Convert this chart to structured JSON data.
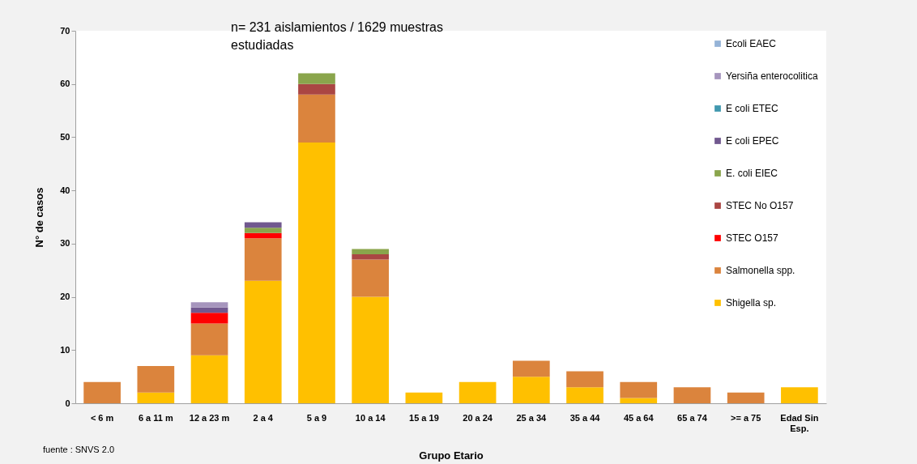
{
  "chart_data": {
    "type": "bar",
    "stacked": true,
    "xlabel": "Grupo Etario",
    "ylabel": "N° de casos",
    "categories": [
      "< 6 m",
      "6 a 11 m",
      "12 a 23 m",
      "2 a 4",
      "5 a 9",
      "10 a 14",
      "15 a 19",
      "20 a 24",
      "25 a 34",
      "35 a 44",
      "45 a 64",
      "65 a 74",
      ">= a 75",
      "Edad Sin Esp."
    ],
    "series": [
      {
        "name": "Shigella sp.",
        "color": "#ffc000",
        "values": [
          0,
          2,
          9,
          23,
          49,
          20,
          2,
          4,
          5,
          3,
          1,
          0,
          0,
          3
        ]
      },
      {
        "name": "Salmonella spp.",
        "color": "#db843d",
        "values": [
          4,
          5,
          6,
          8,
          9,
          7,
          0,
          0,
          3,
          3,
          3,
          3,
          2,
          0
        ]
      },
      {
        "name": "STEC O157",
        "color": "#ff0000",
        "values": [
          0,
          0,
          2,
          1,
          0,
          0,
          0,
          0,
          0,
          0,
          0,
          0,
          0,
          0
        ]
      },
      {
        "name": "STEC No O157",
        "color": "#aa4643",
        "values": [
          0,
          0,
          0,
          0,
          2,
          1,
          0,
          0,
          0,
          0,
          0,
          0,
          0,
          0
        ]
      },
      {
        "name": "E. coli EIEC",
        "color": "#8aa54c",
        "values": [
          0,
          0,
          0,
          1,
          2,
          1,
          0,
          0,
          0,
          0,
          0,
          0,
          0,
          0
        ]
      },
      {
        "name": "E coli EPEC",
        "color": "#71588f",
        "values": [
          0,
          0,
          1,
          1,
          0,
          0,
          0,
          0,
          0,
          0,
          0,
          0,
          0,
          0
        ]
      },
      {
        "name": "E coli ETEC",
        "color": "#4198af",
        "values": [
          0,
          0,
          0,
          0,
          0,
          0,
          0,
          0,
          0,
          0,
          0,
          0,
          0,
          0
        ]
      },
      {
        "name": "Yersiña enterocolitica",
        "color": "#a695bd",
        "values": [
          0,
          0,
          1,
          0,
          0,
          0,
          0,
          0,
          0,
          0,
          0,
          0,
          0,
          0
        ]
      },
      {
        "name": "Ecoli EAEC",
        "color": "#95b3d7",
        "values": [
          0,
          0,
          0,
          0,
          0,
          0,
          0,
          0,
          0,
          0,
          0,
          0,
          0,
          0
        ]
      }
    ],
    "ylim": [
      0,
      70
    ],
    "yticks": [
      0,
      10,
      20,
      30,
      40,
      50,
      60,
      70
    ],
    "grid": false,
    "legend": "top right",
    "annotations": [
      "n= 231 aislamientos / 1629 muestras estudiadas",
      "fuente : SNVS 2.0"
    ]
  }
}
